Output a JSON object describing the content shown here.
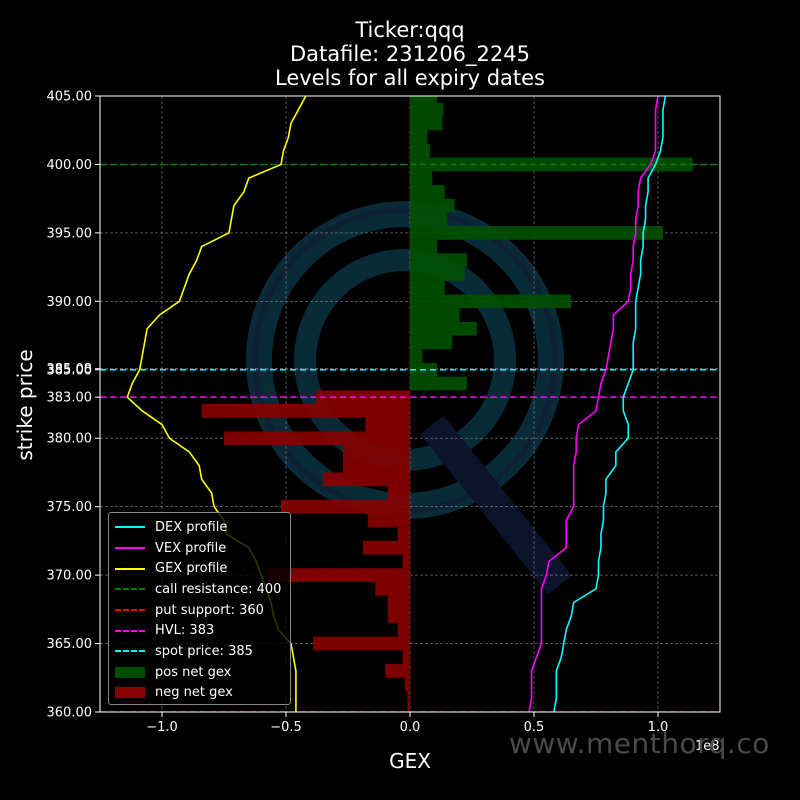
{
  "titles": [
    "Ticker:qqq",
    "Datafile: 231206_2245",
    "Levels for all expiry dates"
  ],
  "watermark": "www.menthorq.co",
  "chart_data": {
    "type": "bar",
    "xlabel": "GEX",
    "ylabel": "strike price",
    "x_offset_label": "1e8",
    "xlim": [
      -1.25,
      1.25
    ],
    "ylim": [
      360,
      405
    ],
    "xticks": [
      "−1.0",
      "−0.5",
      "0.0",
      "0.5",
      "1.0"
    ],
    "xtick_values": [
      -1.0,
      -0.5,
      0.0,
      0.5,
      1.0
    ],
    "yticks": [
      "360.00",
      "365.00",
      "370.00",
      "375.00",
      "380.00",
      "383.00",
      "385.00",
      "385.08",
      "390.00",
      "395.00",
      "400.00",
      "405.00"
    ],
    "ytick_values": [
      360,
      365,
      370,
      375,
      380,
      383,
      385,
      385.08,
      390,
      395,
      400,
      405
    ],
    "grid": true,
    "legend_position": "lower-left",
    "legend": [
      {
        "label": "DEX profile",
        "type": "line",
        "color": "#00ffff"
      },
      {
        "label": "VEX profile",
        "type": "line",
        "color": "#ff00ff"
      },
      {
        "label": "GEX profile",
        "type": "line",
        "color": "#ffff00"
      },
      {
        "label": "call resistance: 400",
        "type": "dash",
        "color": "#008000"
      },
      {
        "label": "put support: 360",
        "type": "dash",
        "color": "#ff0000"
      },
      {
        "label": "HVL: 383",
        "type": "dash",
        "color": "#ff00ff"
      },
      {
        "label": "spot price: 385",
        "type": "dash",
        "color": "#00ffff"
      },
      {
        "label": "pos net gex",
        "type": "box",
        "color": "#004d00"
      },
      {
        "label": "neg net gex",
        "type": "box",
        "color": "#8b0000"
      }
    ],
    "levels": [
      {
        "name": "call resistance",
        "y": 400,
        "color": "#008000"
      },
      {
        "name": "put support",
        "y": 360,
        "color": "#ff0000"
      },
      {
        "name": "HVL",
        "y": 383,
        "color": "#ff00ff"
      },
      {
        "name": "spot price",
        "y": 385,
        "color": "#00ffff"
      }
    ],
    "bars": {
      "strikes": [
        405,
        404,
        403,
        402,
        401,
        400,
        399,
        398,
        397,
        396,
        395,
        394,
        393,
        392,
        391,
        390,
        389,
        388,
        387,
        386,
        385,
        384,
        383,
        382,
        381,
        380,
        379,
        378,
        377,
        376,
        375,
        374,
        373,
        372,
        371,
        370,
        369,
        368,
        367,
        366,
        365,
        364,
        363,
        362,
        361,
        360
      ],
      "values": [
        0.11,
        0.135,
        0.13,
        0.07,
        0.08,
        1.14,
        0.09,
        0.14,
        0.18,
        0.15,
        1.02,
        0.11,
        0.23,
        0.22,
        0.14,
        0.65,
        0.2,
        0.27,
        0.17,
        0.05,
        0.11,
        0.23,
        -0.38,
        -0.84,
        -0.18,
        -0.75,
        -0.27,
        -0.27,
        -0.35,
        -0.09,
        -0.52,
        -0.17,
        -0.05,
        -0.19,
        -0.03,
        -0.57,
        -0.14,
        -0.09,
        -0.09,
        -0.05,
        -0.39,
        -0.03,
        -0.1,
        -0.02,
        -0.01,
        -0.01
      ]
    },
    "series": [
      {
        "name": "DEX profile",
        "color": "#00ffff",
        "x": [
          1.03,
          1.02,
          1.02,
          1.02,
          1.01,
          0.99,
          0.96,
          0.96,
          0.95,
          0.95,
          0.94,
          0.94,
          0.93,
          0.93,
          0.92,
          0.91,
          0.91,
          0.91,
          0.9,
          0.9,
          0.9,
          0.88,
          0.86,
          0.86,
          0.88,
          0.88,
          0.83,
          0.83,
          0.79,
          0.79,
          0.78,
          0.78,
          0.77,
          0.77,
          0.76,
          0.76,
          0.75,
          0.66,
          0.65,
          0.63,
          0.62,
          0.61,
          0.59,
          0.59,
          0.59,
          0.58
        ],
        "y": [
          405,
          404,
          403,
          402,
          401,
          400,
          399,
          398,
          397,
          396,
          395,
          394,
          393,
          392,
          391,
          390,
          389,
          388,
          387,
          386,
          385,
          384,
          383,
          382,
          381,
          380,
          379,
          378,
          377,
          376,
          375,
          374,
          373,
          372,
          371,
          370,
          369,
          368,
          367,
          366,
          365,
          364,
          363,
          362,
          361,
          360
        ]
      },
      {
        "name": "VEX profile",
        "color": "#ff00ff",
        "x": [
          1.0,
          0.99,
          0.99,
          0.99,
          0.99,
          0.97,
          0.93,
          0.92,
          0.92,
          0.91,
          0.91,
          0.9,
          0.9,
          0.89,
          0.89,
          0.88,
          0.82,
          0.82,
          0.81,
          0.8,
          0.79,
          0.77,
          0.76,
          0.75,
          0.68,
          0.67,
          0.67,
          0.66,
          0.66,
          0.66,
          0.66,
          0.63,
          0.63,
          0.63,
          0.56,
          0.55,
          0.53,
          0.53,
          0.53,
          0.53,
          0.53,
          0.51,
          0.49,
          0.49,
          0.49,
          0.48
        ],
        "y": [
          405,
          404,
          403,
          402,
          401,
          400,
          399,
          398,
          397,
          396,
          395,
          394,
          393,
          392,
          391,
          390,
          389,
          388,
          387,
          386,
          385,
          384,
          383,
          382,
          381,
          380,
          379,
          378,
          377,
          376,
          375,
          374,
          373,
          372,
          371,
          370,
          369,
          368,
          367,
          366,
          365,
          364,
          363,
          362,
          361,
          360
        ]
      },
      {
        "name": "GEX profile",
        "color": "#ffff00",
        "x": [
          -0.42,
          -0.45,
          -0.48,
          -0.49,
          -0.51,
          -0.52,
          -0.65,
          -0.67,
          -0.71,
          -0.72,
          -0.73,
          -0.84,
          -0.86,
          -0.89,
          -0.91,
          -0.93,
          -1.01,
          -1.06,
          -1.07,
          -1.08,
          -1.09,
          -1.12,
          -1.14,
          -1.08,
          -1.0,
          -0.97,
          -0.89,
          -0.85,
          -0.84,
          -0.8,
          -0.79,
          -0.75,
          -0.74,
          -0.65,
          -0.62,
          -0.6,
          -0.58,
          -0.56,
          -0.55,
          -0.53,
          -0.48,
          -0.47,
          -0.46,
          -0.46,
          -0.46,
          -0.46
        ],
        "y": [
          405,
          404,
          403,
          402,
          401,
          400,
          399,
          398,
          397,
          396,
          395,
          394,
          393,
          392,
          391,
          390,
          389,
          388,
          387,
          386,
          385,
          384,
          383,
          382,
          381,
          380,
          379,
          378,
          377,
          376,
          375,
          374,
          373,
          372,
          371,
          370,
          369,
          368,
          367,
          366,
          365,
          364,
          363,
          362,
          361,
          360
        ]
      }
    ]
  }
}
